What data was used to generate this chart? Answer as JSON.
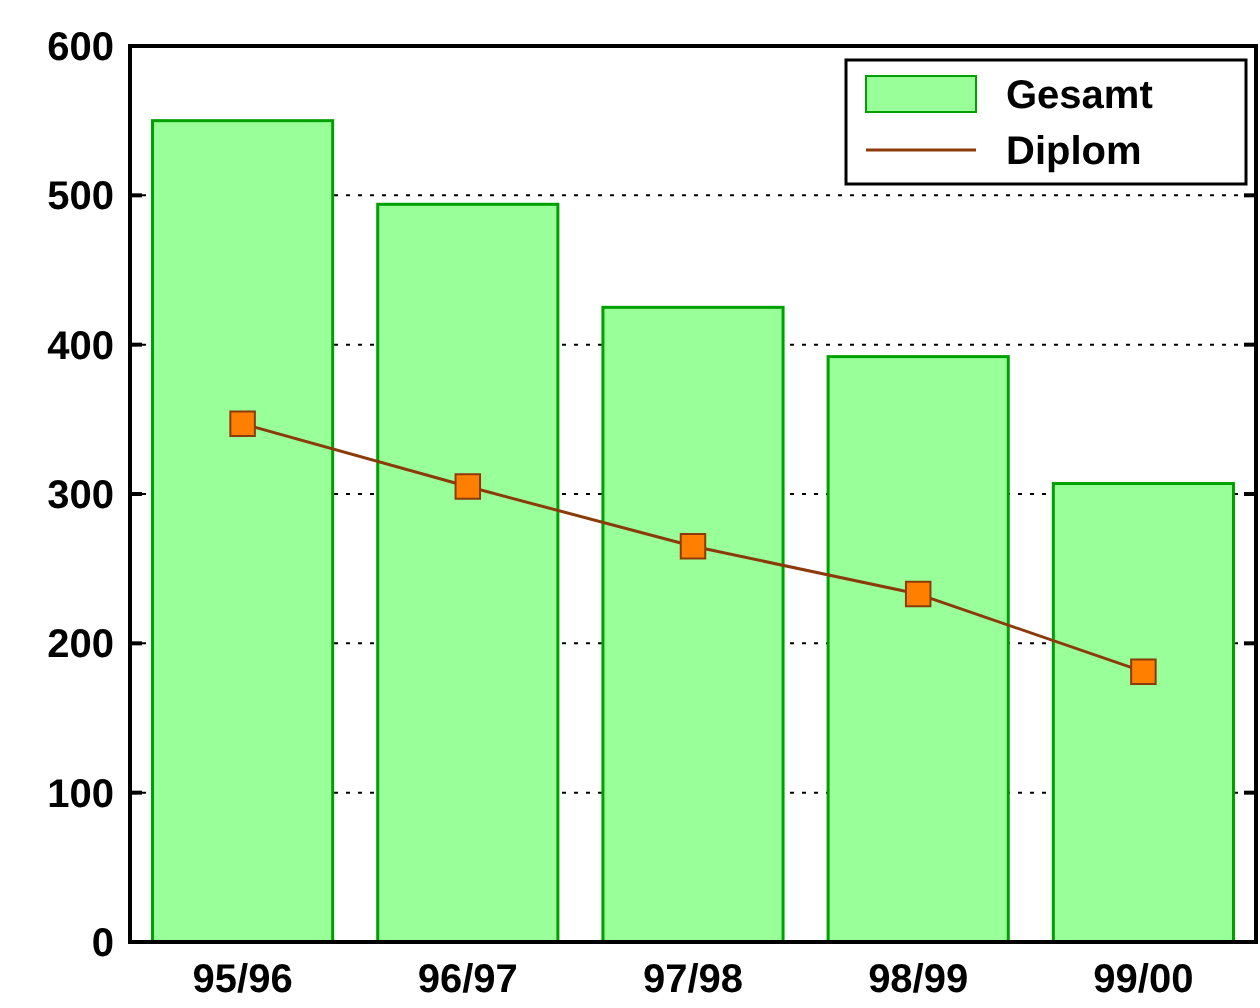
{
  "chart_data": {
    "type": "bar",
    "categories": [
      "95/96",
      "96/97",
      "97/98",
      "98/99",
      "99/00"
    ],
    "series": [
      {
        "name": "Gesamt",
        "color": "#99ff99",
        "values": [
          550,
          494,
          425,
          392,
          307
        ]
      },
      {
        "name": "Diplom",
        "type": "line",
        "color": "#8b3a0a",
        "values": [
          347,
          305,
          265,
          233,
          181
        ]
      }
    ],
    "ylim": [
      0,
      600
    ],
    "yticks": [
      0,
      100,
      200,
      300,
      400,
      500,
      600
    ],
    "grid": "y",
    "legend": "top right",
    "marker": "square"
  }
}
